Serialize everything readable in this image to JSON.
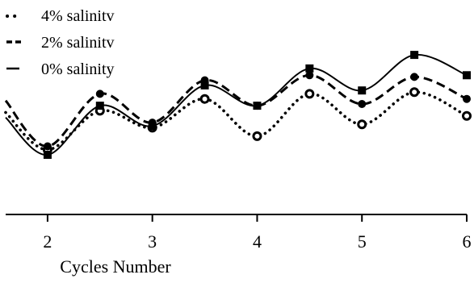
{
  "chart_data": {
    "type": "line",
    "title": "",
    "xlabel": "Cycles Number",
    "ylabel": "",
    "x": [
      1.6,
      2.0,
      2.5,
      3.0,
      3.5,
      4.0,
      4.5,
      5.0,
      5.5,
      6.0
    ],
    "xticks": [
      "2",
      "3",
      "4",
      "5",
      "6"
    ],
    "xlim": [
      1.6,
      6.0
    ],
    "ylim": [
      0,
      1
    ],
    "grid": false,
    "legend_position": "top-left",
    "series": [
      {
        "name": "4% salinitv",
        "style": "dotted",
        "marker": "open-circle",
        "values": [
          0.55,
          0.33,
          0.56,
          0.46,
          0.63,
          0.41,
          0.66,
          0.48,
          0.67,
          0.53
        ]
      },
      {
        "name": "2% salinitv",
        "style": "dashed",
        "marker": "filled-circle",
        "values": [
          0.62,
          0.35,
          0.66,
          0.49,
          0.74,
          0.59,
          0.77,
          0.6,
          0.76,
          0.63
        ]
      },
      {
        "name": "0% salinity",
        "style": "solid",
        "marker": "filled-square",
        "values": [
          0.52,
          0.3,
          0.59,
          0.47,
          0.71,
          0.59,
          0.81,
          0.68,
          0.89,
          0.77
        ]
      }
    ]
  }
}
